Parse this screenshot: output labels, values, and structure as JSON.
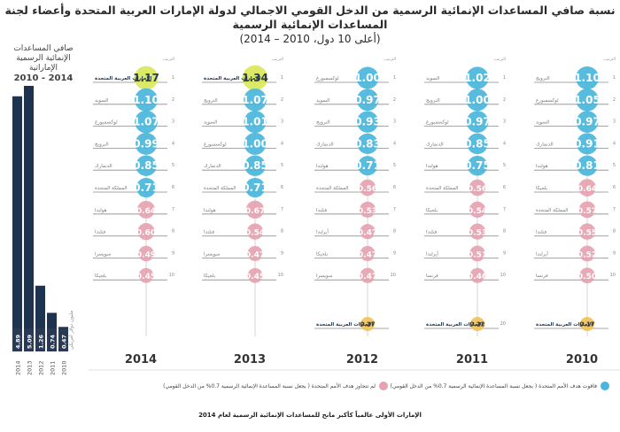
{
  "title": "نسبة صافي المساعدات الإنمائية الرسمية من الدخل القومي الاجمالي لدولة الإمارات العربية المتحدة وأعضاء لجنة المساعدات الإنمائية الرسمية",
  "subtitle": "(أعلى 10 دول، 2010 – 2014)",
  "bar_chart_title": "صافي المساعدات الإنمائية الرسمية الإماراتية",
  "bar_chart_years": "2014 - 2010",
  "bar_chart_unit": "مليون دولار أمريكي",
  "legend": {
    "above": "فاقوت هدف الأمم المتحدة ( بجعل نسبة المساعدة الإنمائية الرسمية 0.7% من الدخل القومي)",
    "below": "لم تتجاوز هدف الأمم المتحدة ( بجعل نسبة المساعدة الإنمائية الرسمية 0.7% من الدخل القومي)"
  },
  "footnote": "الإمارات الأولى عالمياً كأكبر مانح للمساعدات الإنمائية الرسمية لعام 2014",
  "colors": {
    "above": "#4ab6dc",
    "below": "#e5a3b0",
    "uae_highlight": "#d9e85a",
    "uae_2012": "#f0c25a",
    "bars": "#1e3350"
  },
  "rank_header": "الترتيب",
  "chart_data": [
    {
      "type": "bar",
      "title": "صافي المساعدات الإنمائية الرسمية الإماراتية 2014 - 2010",
      "categories": [
        "2014",
        "2013",
        "2012",
        "2011",
        "2010"
      ],
      "values": [
        4.89,
        5.09,
        1.26,
        0.74,
        0.47
      ],
      "unit": "مليون دولار أمريكي"
    },
    {
      "type": "table",
      "title": "نسبة صافي المساعدات الإنمائية الرسمية من الدخل القومي الاجمالي",
      "years": [
        {
          "year": "2014",
          "rows": [
            {
              "rank": "1",
              "country": "الإمارات العربية المتحدة",
              "value": 1.17,
              "uae": true
            },
            {
              "rank": "2",
              "country": "السويد",
              "value": 1.1
            },
            {
              "rank": "3",
              "country": "لوكسمبورغ",
              "value": 1.07
            },
            {
              "rank": "4",
              "country": "النرويج",
              "value": 0.99
            },
            {
              "rank": "5",
              "country": "الدنمارك",
              "value": 0.85
            },
            {
              "rank": "6",
              "country": "المملكة المتحدة",
              "value": 0.71
            },
            {
              "rank": "7",
              "country": "هولندا",
              "value": 0.64
            },
            {
              "rank": "8",
              "country": "فنلندا",
              "value": 0.6
            },
            {
              "rank": "9",
              "country": "سويسرا",
              "value": 0.49
            },
            {
              "rank": "10",
              "country": "بلجيكا",
              "value": 0.45
            }
          ]
        },
        {
          "year": "2013",
          "rows": [
            {
              "rank": "1",
              "country": "الإمارات العربية المتحدة",
              "value": 1.34,
              "uae": true
            },
            {
              "rank": "2",
              "country": "النرويج",
              "value": 1.07
            },
            {
              "rank": "3",
              "country": "السويد",
              "value": 1.01
            },
            {
              "rank": "4",
              "country": "لوكسمبورغ",
              "value": 1.0
            },
            {
              "rank": "5",
              "country": "الدنمارك",
              "value": 0.85
            },
            {
              "rank": "6",
              "country": "المملكة المتحدة",
              "value": 0.71
            },
            {
              "rank": "7",
              "country": "هولندا",
              "value": 0.67
            },
            {
              "rank": "8",
              "country": "فنلندا",
              "value": 0.54
            },
            {
              "rank": "9",
              "country": "سويسرا",
              "value": 0.47
            },
            {
              "rank": "10",
              "country": "بلجيكا",
              "value": 0.45
            }
          ]
        },
        {
          "year": "2012",
          "rows": [
            {
              "rank": "1",
              "country": "لوكسمبورغ",
              "value": 1.0
            },
            {
              "rank": "2",
              "country": "السويد",
              "value": 0.97
            },
            {
              "rank": "3",
              "country": "النرويج",
              "value": 0.93
            },
            {
              "rank": "4",
              "country": "الدنمارك",
              "value": 0.83
            },
            {
              "rank": "5",
              "country": "هولندا",
              "value": 0.71
            },
            {
              "rank": "6",
              "country": "المملكة المتحدة",
              "value": 0.56
            },
            {
              "rank": "7",
              "country": "فنلندا",
              "value": 0.53
            },
            {
              "rank": "8",
              "country": "أيرلندا",
              "value": 0.47
            },
            {
              "rank": "9",
              "country": "بلجيكا",
              "value": 0.47
            },
            {
              "rank": "10",
              "country": "سويسرا",
              "value": 0.47
            }
          ],
          "uae": {
            "rank": "",
            "country": "الإمارات العربية المتحدة",
            "value": 0.27
          }
        },
        {
          "year": "2011",
          "rows": [
            {
              "rank": "1",
              "country": "السويد",
              "value": 1.02
            },
            {
              "rank": "2",
              "country": "النرويج",
              "value": 1.0
            },
            {
              "rank": "3",
              "country": "لوكسمبورغ",
              "value": 0.97
            },
            {
              "rank": "4",
              "country": "الدنمارك",
              "value": 0.85
            },
            {
              "rank": "5",
              "country": "هولندا",
              "value": 0.75
            },
            {
              "rank": "6",
              "country": "المملكة المتحدة",
              "value": 0.56
            },
            {
              "rank": "7",
              "country": "بلجيكا",
              "value": 0.54
            },
            {
              "rank": "8",
              "country": "فنلندا",
              "value": 0.53
            },
            {
              "rank": "9",
              "country": "أيرلندا",
              "value": 0.51
            },
            {
              "rank": "10",
              "country": "فرنسا",
              "value": 0.46
            }
          ],
          "uae": {
            "rank": "20",
            "country": "الإمارات العربية المتحدة",
            "value": 0.22
          }
        },
        {
          "year": "2010",
          "rows": [
            {
              "rank": "1",
              "country": "النرويج",
              "value": 1.1
            },
            {
              "rank": "2",
              "country": "لوكسمبورغ",
              "value": 1.05
            },
            {
              "rank": "3",
              "country": "السويد",
              "value": 0.97
            },
            {
              "rank": "4",
              "country": "الدنمارك",
              "value": 0.91
            },
            {
              "rank": "5",
              "country": "هولندا",
              "value": 0.81
            },
            {
              "rank": "6",
              "country": "بلجيكا",
              "value": 0.64
            },
            {
              "rank": "7",
              "country": "المملكة المتحدة",
              "value": 0.57
            },
            {
              "rank": "8",
              "country": "فنلندا",
              "value": 0.55
            },
            {
              "rank": "9",
              "country": "أيرلندا",
              "value": 0.52
            },
            {
              "rank": "10",
              "country": "فرنسا",
              "value": 0.5
            }
          ],
          "uae": {
            "rank": "",
            "country": "الإمارات العربية المتحدة",
            "value": 0.17
          }
        }
      ]
    }
  ]
}
